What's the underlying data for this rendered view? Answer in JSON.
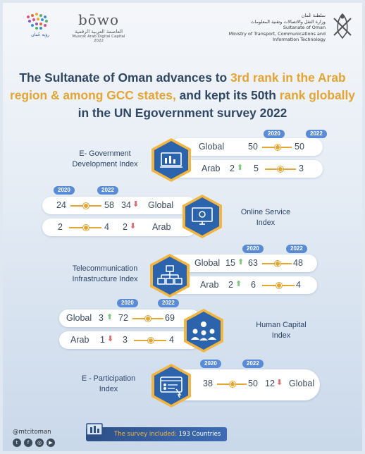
{
  "header": {
    "vision_logo_text": "رؤية عُمان",
    "muscat_logo": {
      "word": "bōwo",
      "arabic": "العاصمة العربية الرقمية",
      "english": "Muscat Arab Digital Capital",
      "year": "2022"
    },
    "gov": {
      "arabic_1": "سلطنة عُمان",
      "arabic_2": "وزارة النقل والاتصالات وتقنية المعلومات",
      "english_1": "Sultanate of Oman",
      "english_2": "Ministry of Transport, Communications and",
      "english_3": "Information Technology"
    }
  },
  "title": {
    "p1": "The Sultanate of Oman advances to ",
    "h1": "3rd rank in the Arab region & among GCC states,",
    "p2": " and kept its 50th ",
    "h2": "rank globally",
    "p3": " in the UN Egovernment survey 2022"
  },
  "years": {
    "y2020": "2020",
    "y2022": "2022"
  },
  "indices": {
    "egdi": {
      "label_1": "E- Government",
      "label_2": "Development Index",
      "global": {
        "label": "Global",
        "v2020": "50",
        "v2022": "50"
      },
      "arab": {
        "label": "Arab",
        "change": "2",
        "v2020": "5",
        "v2022": "3"
      }
    },
    "osi": {
      "label_1": "Online Service",
      "label_2": "Index",
      "global": {
        "label": "Global",
        "v2020": "24",
        "v2022": "58",
        "change": "34"
      },
      "arab": {
        "label": "Arab",
        "v2020": "2",
        "v2022": "4",
        "change": "2"
      }
    },
    "tii": {
      "label_1": "Telecommunication",
      "label_2": "Infrastructure Index",
      "global": {
        "label": "Global",
        "change": "15",
        "v2020": "63",
        "v2022": "48"
      },
      "arab": {
        "label": "Arab",
        "change": "2",
        "v2020": "6",
        "v2022": "4"
      }
    },
    "hci": {
      "label_1": "Human Capital",
      "label_2": "Index",
      "global": {
        "label": "Global",
        "change": "3",
        "v2020": "72",
        "v2022": "69"
      },
      "arab": {
        "label": "Arab",
        "change": "1",
        "v2020": "3",
        "v2022": "4"
      }
    },
    "epi": {
      "label_1": "E - Participation",
      "label_2": "Index",
      "global": {
        "label": "Global",
        "v2020": "38",
        "v2022": "50",
        "change": "12"
      }
    }
  },
  "footer": {
    "handle": "@mtcitoman",
    "survey_prefix": "The survey included: ",
    "survey_value": "193 Countries"
  },
  "colors": {
    "accent": "#e4a532",
    "navy": "#2f4664",
    "hex_blue": "#2b63ad",
    "up": "#7fc97f",
    "down": "#e36b6b"
  }
}
